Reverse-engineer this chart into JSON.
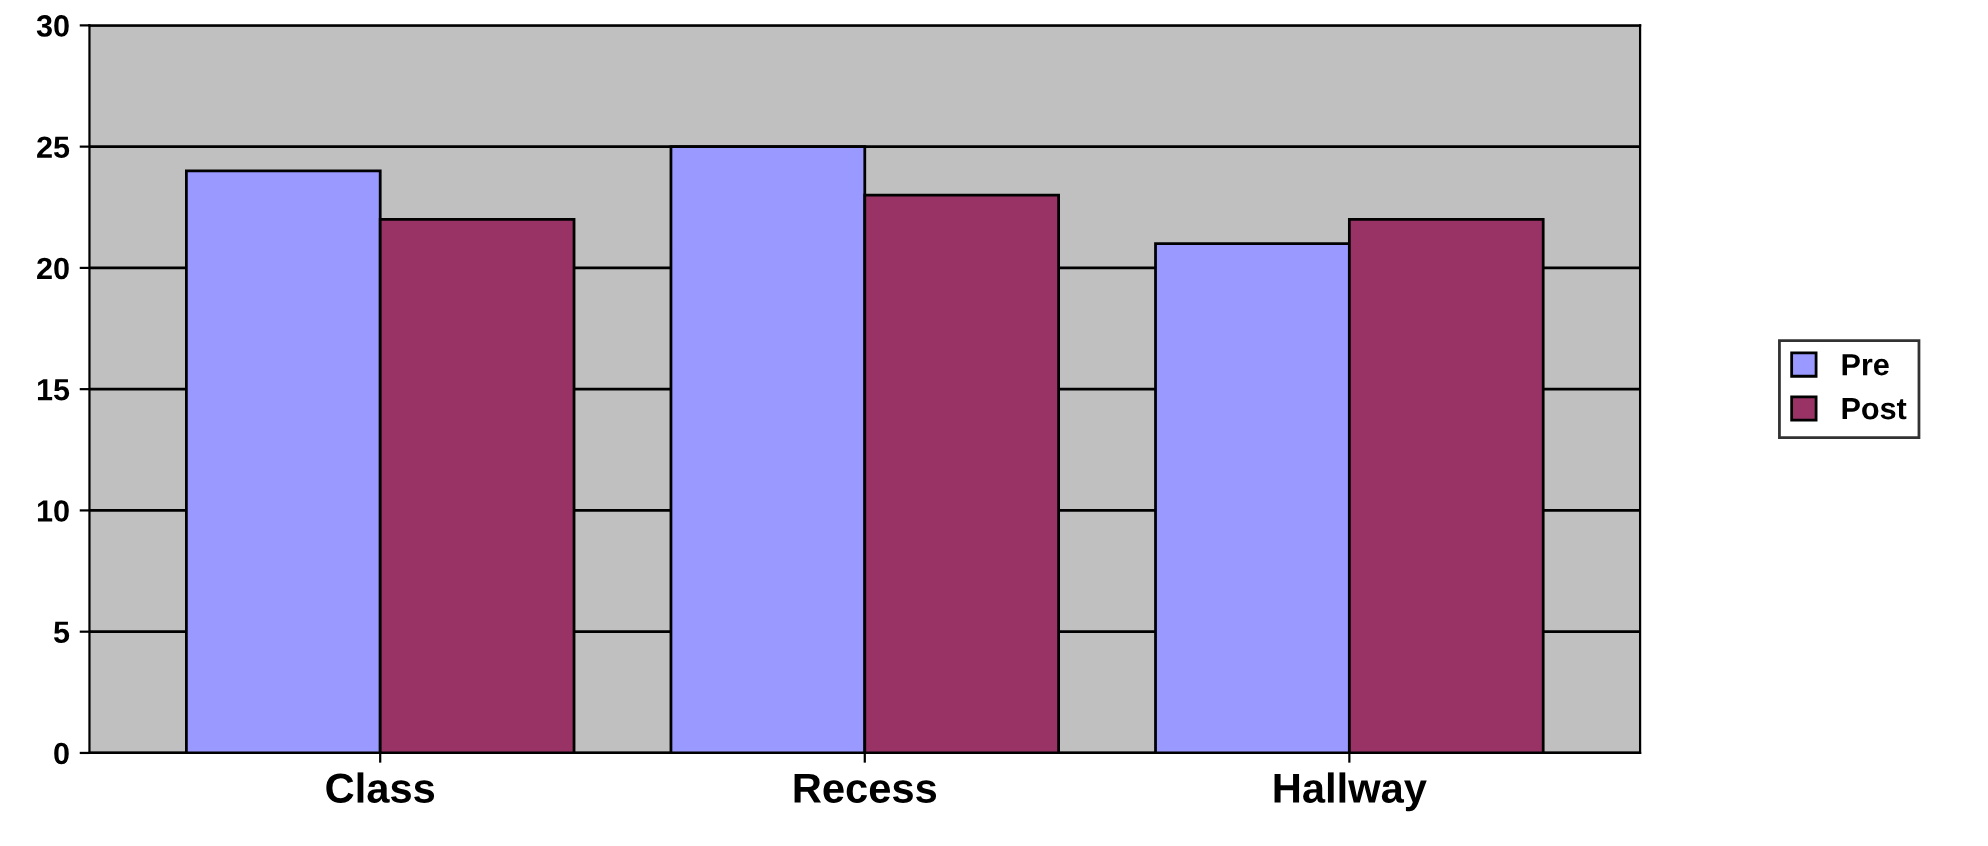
{
  "chart_data": {
    "type": "bar",
    "categories": [
      "Class",
      "Recess",
      "Hallway"
    ],
    "series": [
      {
        "name": "Pre",
        "color": "#9999ff",
        "values": [
          24,
          25,
          21
        ]
      },
      {
        "name": "Post",
        "color": "#993366",
        "values": [
          22,
          23,
          22
        ]
      }
    ],
    "ylim": [
      0,
      30
    ],
    "yticks": [
      0,
      5,
      10,
      15,
      20,
      25,
      30
    ],
    "grid": "y",
    "legend": "right"
  }
}
